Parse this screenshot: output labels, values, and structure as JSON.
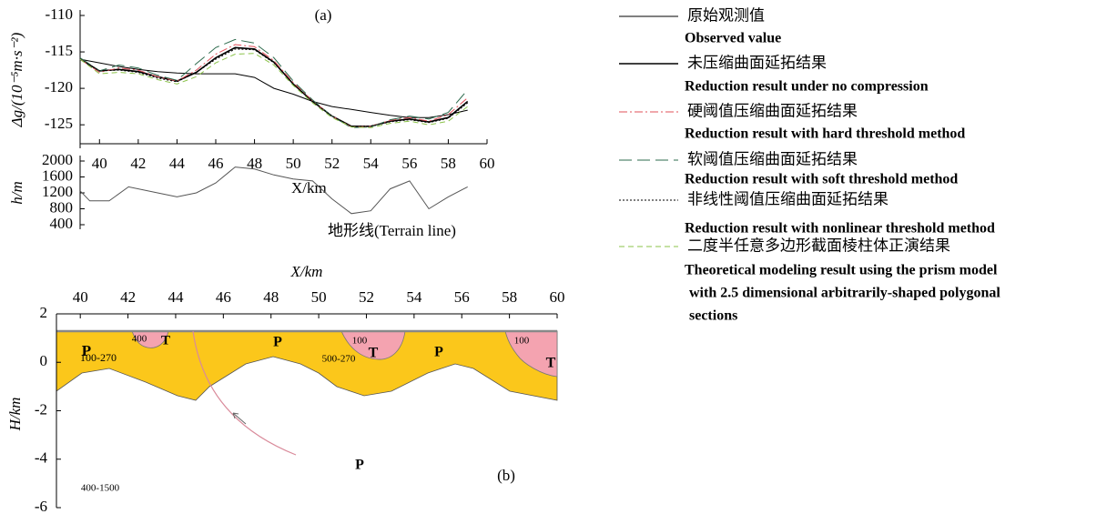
{
  "chart_data": [
    {
      "type": "line",
      "title": "(a)",
      "y_label": "Δg/(10⁻⁵m·s⁻²)",
      "xlim": [
        39,
        60
      ],
      "xticks": [
        40,
        42,
        44,
        46,
        48,
        50,
        52,
        54,
        56,
        58,
        60
      ],
      "ylim": [
        -127.6,
        -110
      ],
      "yticks": [
        -110,
        -115,
        -120,
        -125
      ],
      "x": [
        39,
        40,
        41,
        42,
        43,
        44,
        45,
        46,
        47,
        48,
        49,
        50,
        51,
        52,
        53,
        54,
        55,
        56,
        57,
        58,
        59
      ],
      "series": [
        {
          "name": "原始观测值",
          "description": [
            "Observed value"
          ],
          "color": "#000000",
          "style": "solid",
          "values": [
            -116,
            -116.5,
            -117,
            -117.4,
            -117.7,
            -117.9,
            -118,
            -118,
            -118,
            -118.5,
            -120,
            -120.8,
            -121.8,
            -122.5,
            -122.9,
            -123.3,
            -123.7,
            -124,
            -124,
            -123.6,
            -123
          ]
        },
        {
          "name": "未压缩曲面延拓结果",
          "description": [
            "Reduction result under no compression"
          ],
          "color": "#000000",
          "style": "thick",
          "values": [
            -116,
            -117.6,
            -117.4,
            -117.7,
            -118.4,
            -119,
            -117.8,
            -115.8,
            -114.4,
            -114.6,
            -116.4,
            -119.4,
            -121.8,
            -123.8,
            -125.2,
            -125.2,
            -124.5,
            -124.2,
            -124.6,
            -124,
            -121.8
          ]
        },
        {
          "name": "硬阈值压缩曲面延拓结果",
          "description": [
            "Reduction result with hard threshold method"
          ],
          "color": "#e0505a",
          "style": "dash-dot",
          "values": [
            -116,
            -117.8,
            -117.2,
            -117.5,
            -118.4,
            -119,
            -117.5,
            -115.3,
            -114,
            -114.3,
            -116.2,
            -119.2,
            -121.7,
            -123.8,
            -125.3,
            -125.2,
            -124.4,
            -124,
            -124.5,
            -123.6,
            -121.3
          ]
        },
        {
          "name": "软阈值压缩曲面延拓结果",
          "description": [
            "Reduction result with  soft threshold method"
          ],
          "color": "#2e6b4e",
          "style": "long-dash",
          "values": [
            -115.8,
            -117.6,
            -116.8,
            -117.2,
            -118.2,
            -118.9,
            -116.6,
            -114.4,
            -113.3,
            -113.8,
            -115.8,
            -119,
            -121.6,
            -123.8,
            -125.4,
            -125.3,
            -124.3,
            -123.8,
            -124.2,
            -123.3,
            -120.2
          ]
        },
        {
          "name": "非线性阈值压缩曲面延拓结果",
          "description": [
            "Reduction result with nonlinear threshold method"
          ],
          "color": "#000000",
          "style": "dotted",
          "values": [
            -116,
            -117.6,
            -117.5,
            -117.8,
            -118.6,
            -119.1,
            -117.8,
            -116,
            -114.6,
            -114.7,
            -116.5,
            -119.4,
            -121.8,
            -123.8,
            -125.2,
            -125.2,
            -124.6,
            -124.3,
            -124.7,
            -124.1,
            -122
          ]
        },
        {
          "name": "二度半任意多边形截面棱柱体正演结果",
          "description": [
            "Theoretical modeling result using  the prism model",
            "with 2.5 dimensional arbitrarily-shaped polygonal",
            "sections"
          ],
          "color": "#8bc34a",
          "style": "dashed",
          "values": [
            -116,
            -118,
            -117.8,
            -118,
            -118.8,
            -119.4,
            -118.4,
            -116.5,
            -115.3,
            -115.2,
            -116.8,
            -119.6,
            -122,
            -124,
            -125.3,
            -125.4,
            -124.8,
            -124.5,
            -125,
            -124.5,
            -122.5
          ]
        }
      ]
    },
    {
      "type": "line",
      "y_label": "h/m",
      "annotations": [
        "X/km",
        "地形线(Terrain line)"
      ],
      "xlim": [
        39,
        60
      ],
      "ylim": [
        400,
        2000
      ],
      "yticks": [
        2000,
        1600,
        1200,
        800,
        400
      ],
      "x": [
        39,
        39.5,
        40.5,
        41.5,
        43,
        44,
        45,
        46,
        47,
        48,
        49,
        50,
        51,
        52,
        53,
        54,
        55,
        56,
        57,
        58,
        59
      ],
      "series": [
        {
          "color": "#555555",
          "style": "solid",
          "values": [
            1250,
            1000,
            1000,
            1350,
            1200,
            1100,
            1200,
            1450,
            1850,
            1800,
            1650,
            1550,
            1500,
            1050,
            680,
            750,
            1300,
            1500,
            800,
            1100,
            1350
          ]
        }
      ]
    },
    {
      "type": "section",
      "title": "(b)",
      "x_label": "X/km",
      "y_label": "H/km",
      "xlim": [
        39,
        60
      ],
      "xticks": [
        40,
        42,
        44,
        46,
        48,
        50,
        52,
        54,
        56,
        58,
        60
      ],
      "ylim": [
        -6,
        2
      ],
      "yticks": [
        2,
        0,
        -2,
        -4,
        -6
      ],
      "annotations": [
        "P",
        "100-270",
        "400",
        "T",
        "P",
        "100",
        "T",
        "500-270",
        "P",
        "100",
        "T",
        "P",
        "400-1500"
      ]
    }
  ]
}
